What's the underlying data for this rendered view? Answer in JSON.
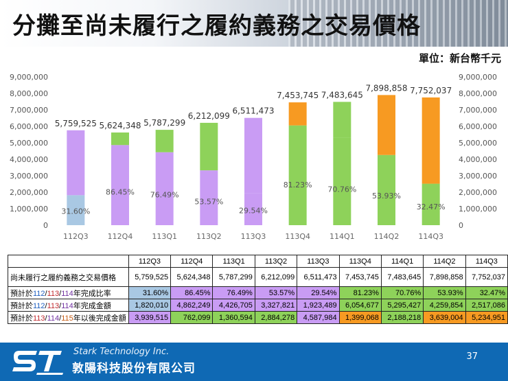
{
  "title": "分攤至尚未履行之履約義務之交易價格",
  "unit": "單位：新台幣千元",
  "chart_data": {
    "type": "bar",
    "stacked": true,
    "categories": [
      "112Q3",
      "112Q4",
      "113Q1",
      "113Q2",
      "113Q3",
      "113Q4",
      "114Q1",
      "114Q2",
      "114Q3"
    ],
    "totals": [
      5759525,
      5624348,
      5787299,
      6212099,
      6511473,
      7453745,
      7483645,
      7898858,
      7752037
    ],
    "totals_text": [
      "5,759,525",
      "5,624,348",
      "5,787,299",
      "6,212,099",
      "6,511,473",
      "7,453,745",
      "7,483,645",
      "7,898,858",
      "7,752,037"
    ],
    "expected_completion_amount": [
      1820010,
      4862249,
      4426705,
      3327821,
      1923489,
      6054677,
      5295427,
      4259854,
      2517086
    ],
    "remaining_amount": [
      3939515,
      762099,
      1360594,
      2884278,
      4587984,
      1399068,
      2188218,
      3639004,
      5234951
    ],
    "percent_labels": [
      "31.60%",
      "86.45%",
      "76.49%",
      "53.57%",
      "29.54%",
      "81.23%",
      "70.76%",
      "53.93%",
      "32.47%"
    ],
    "lower_colors": [
      "#a9c8e3",
      "#c99cf4",
      "#c99cf4",
      "#c99cf4",
      "#c99cf4",
      "#8ed25a",
      "#8ed25a",
      "#8ed25a",
      "#8ed25a"
    ],
    "upper_colors": [
      "#c99cf4",
      "#8ed25a",
      "#8ed25a",
      "#8ed25a",
      "#c99cf4",
      "#f79a22",
      "#8ed25a",
      "#f79a22",
      "#f79a22"
    ],
    "ylim": [
      0,
      9000000
    ],
    "yticks_text": [
      "0",
      "1,000,000",
      "2,000,000",
      "3,000,000",
      "4,000,000",
      "5,000,000",
      "6,000,000",
      "7,000,000",
      "8,000,000",
      "9,000,000"
    ],
    "grid": false,
    "legend": "none"
  },
  "table": {
    "headers": [
      "112Q3",
      "112Q4",
      "113Q1",
      "113Q2",
      "113Q3",
      "113Q4",
      "114Q1",
      "114Q2",
      "114Q3"
    ],
    "row_total_label": "尚未履行之履約義務之交易價格",
    "row_total": [
      "5,759,525",
      "5,624,348",
      "5,787,299",
      "6,212,099",
      "6,511,473",
      "7,453,745",
      "7,483,645",
      "7,898,858",
      "7,752,037"
    ],
    "row_ratio_label": {
      "prefix": "預計於",
      "y1": "112",
      "s1": "/",
      "y2": "113",
      "s2": "/",
      "y3": "114",
      "suffix": "年完成比率"
    },
    "row_ratio": [
      "31.60%",
      "86.45%",
      "76.49%",
      "53.57%",
      "29.54%",
      "81.23%",
      "70.76%",
      "53.93%",
      "32.47%"
    ],
    "row_amount_label": {
      "prefix": "預計於",
      "y1": "112",
      "s1": "/",
      "y2": "113",
      "s2": "/",
      "y3": "114",
      "suffix": "年完成金額"
    },
    "row_amount": [
      "1,820,010",
      "4,862,249",
      "4,426,705",
      "3,327,821",
      "1,923,489",
      "6,054,677",
      "5,295,427",
      "4,259,854",
      "2,517,086"
    ],
    "row_later_label": {
      "prefix": "預計於",
      "y1": "113",
      "s1": "/",
      "y2": "114",
      "s2": "/",
      "y3": "115",
      "suffix": "年以後完成金額"
    },
    "row_later": [
      "3,939,515",
      "762,099",
      "1,360,594",
      "2,884,278",
      "4,587,984",
      "1,399,068",
      "2,188,218",
      "3,639,004",
      "5,234,951"
    ],
    "ratio_colors": [
      "blue",
      "purple",
      "purple",
      "purple",
      "purple",
      "green",
      "green",
      "green",
      "green"
    ],
    "amount_colors": [
      "blue",
      "purple",
      "purple",
      "purple",
      "purple",
      "green",
      "green",
      "green",
      "green"
    ],
    "later_colors": [
      "purple",
      "green",
      "green",
      "green",
      "purple",
      "orange",
      "green",
      "orange",
      "orange"
    ]
  },
  "footer": {
    "company_en": "Stark Technology Inc.",
    "company_zh": "敦陽科技股份有限公司",
    "page_number": "37"
  }
}
